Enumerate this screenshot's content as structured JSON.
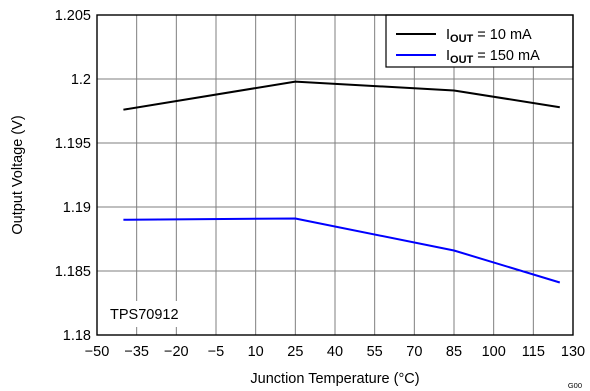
{
  "chart_data": {
    "type": "line",
    "xlabel": "Junction Temperature (°C)",
    "ylabel": "Output Voltage (V)",
    "xlim": [
      -50,
      130
    ],
    "ylim": [
      1.18,
      1.205
    ],
    "x_ticks": [
      "−50",
      "−35",
      "−20",
      "−5",
      "10",
      "25",
      "40",
      "55",
      "70",
      "85",
      "100",
      "115",
      "130"
    ],
    "y_ticks": [
      "1.18",
      "1.185",
      "1.19",
      "1.195",
      "1.2",
      "1.205"
    ],
    "x_tick_values": [
      -50,
      -35,
      -20,
      -5,
      10,
      25,
      40,
      55,
      70,
      85,
      100,
      115,
      130
    ],
    "y_tick_values": [
      1.18,
      1.185,
      1.19,
      1.195,
      1.2,
      1.205
    ],
    "grid": true,
    "legend_position": "top-right",
    "series": [
      {
        "name_main": "I",
        "name_sub": "OUT",
        "name_rest": " = 10 mA",
        "color": "#000000",
        "x": [
          -40,
          25,
          85,
          125
        ],
        "y": [
          1.1976,
          1.1998,
          1.1991,
          1.1978
        ]
      },
      {
        "name_main": "I",
        "name_sub": "OUT",
        "name_rest": " = 150 mA",
        "color": "#0000ff",
        "x": [
          -40,
          25,
          85,
          125
        ],
        "y": [
          1.189,
          1.1891,
          1.1866,
          1.1841
        ]
      }
    ],
    "annotation": "TPS70912",
    "corner_label": "G00"
  }
}
